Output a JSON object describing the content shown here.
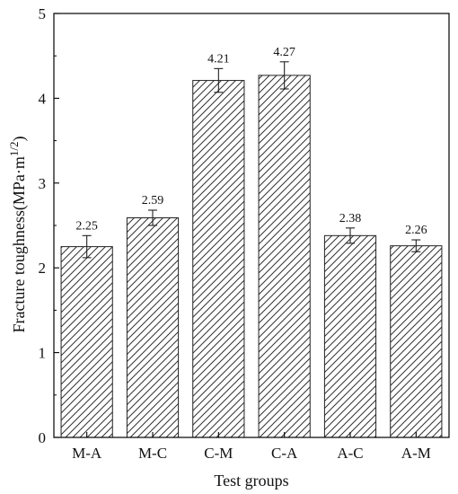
{
  "chart_data": {
    "type": "bar",
    "categories": [
      "M-A",
      "M-C",
      "C-M",
      "C-A",
      "A-C",
      "A-M"
    ],
    "values": [
      2.25,
      2.59,
      4.21,
      4.27,
      2.38,
      2.26
    ],
    "errors": [
      0.13,
      0.09,
      0.14,
      0.16,
      0.09,
      0.07
    ],
    "value_labels": [
      "2.25",
      "2.59",
      "4.21",
      "4.27",
      "2.38",
      "2.26"
    ],
    "xlabel": "Test groups",
    "ylabel": "Fracture toughness(MPa·m",
    "ylabel_exponent": "1/2",
    "ylabel_suffix": ")",
    "ylim": [
      0,
      5
    ],
    "yticks": [
      0,
      1,
      2,
      3,
      4,
      5
    ],
    "bar_fill": "diagonal-hatch",
    "bar_color": "#000000",
    "legend": "none",
    "grid": false
  }
}
